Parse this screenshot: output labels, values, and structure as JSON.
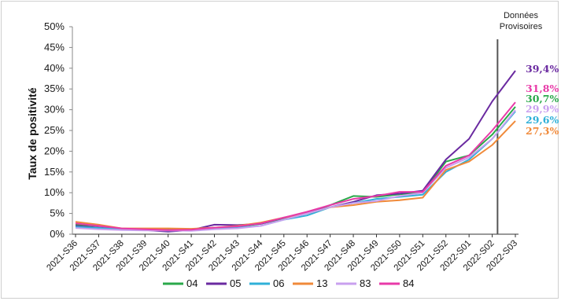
{
  "chart_data": {
    "type": "line",
    "title": "",
    "xlabel": "",
    "ylabel": "Taux de positivité",
    "ylim": [
      0,
      50
    ],
    "yticks": [
      "0%",
      "5%",
      "10%",
      "15%",
      "20%",
      "25%",
      "30%",
      "35%",
      "40%",
      "45%",
      "50%"
    ],
    "categories": [
      "2021-S36",
      "2021-S37",
      "2021-S38",
      "2021-S39",
      "2021-S40",
      "2021-S41",
      "2021-S42",
      "2021-S43",
      "2021-S44",
      "2021-S45",
      "2021-S46",
      "2021-S47",
      "2021-S48",
      "2021-S49",
      "2021-S50",
      "2021-S51",
      "2021-S52",
      "2022-S01",
      "2022-S02",
      "2022-S03"
    ],
    "provisional_note": [
      "Données",
      "Provisoires"
    ],
    "grid": false,
    "legend_position": "bottom",
    "series": [
      {
        "name": "04",
        "color": "#2aa84a",
        "values": [
          2.3,
          2.0,
          1.3,
          1.2,
          1.2,
          1.0,
          1.6,
          1.8,
          2.5,
          3.8,
          5.0,
          7.0,
          9.2,
          9.0,
          9.6,
          10.0,
          17.5,
          19.0,
          24.0,
          30.7
        ],
        "end_label": "30,7%"
      },
      {
        "name": "05",
        "color": "#6a2aa0",
        "values": [
          2.0,
          1.6,
          1.2,
          1.0,
          0.6,
          1.0,
          2.3,
          2.2,
          2.5,
          4.0,
          5.2,
          6.5,
          7.8,
          9.4,
          9.8,
          10.5,
          18.0,
          23.0,
          32.0,
          39.4
        ],
        "end_label": "39,4%"
      },
      {
        "name": "06",
        "color": "#2fb0d8",
        "values": [
          1.8,
          1.5,
          1.2,
          1.0,
          0.9,
          1.0,
          1.5,
          1.6,
          2.0,
          3.5,
          4.5,
          6.5,
          7.5,
          8.5,
          9.0,
          9.5,
          15.0,
          18.0,
          23.0,
          29.6
        ],
        "end_label": "29,6%"
      },
      {
        "name": "13",
        "color": "#f08a3a",
        "values": [
          3.0,
          2.3,
          1.4,
          1.4,
          1.4,
          1.3,
          1.6,
          2.0,
          2.8,
          4.0,
          5.0,
          6.5,
          7.0,
          7.8,
          8.2,
          8.8,
          15.5,
          17.5,
          21.5,
          27.3
        ],
        "end_label": "27,3%"
      },
      {
        "name": "83",
        "color": "#c9a0ef",
        "values": [
          1.5,
          1.2,
          1.0,
          0.9,
          0.9,
          0.8,
          1.2,
          1.4,
          2.0,
          3.5,
          5.0,
          6.5,
          7.5,
          8.0,
          9.2,
          10.0,
          16.0,
          18.5,
          23.0,
          29.9
        ],
        "end_label": "29,9%"
      },
      {
        "name": "84",
        "color": "#e83aa8",
        "values": [
          2.6,
          2.0,
          1.4,
          1.2,
          1.0,
          1.1,
          1.6,
          1.9,
          2.6,
          4.0,
          5.4,
          7.0,
          8.5,
          9.2,
          10.2,
          10.2,
          16.5,
          19.0,
          25.0,
          31.8
        ],
        "end_label": "31,8%"
      }
    ]
  }
}
